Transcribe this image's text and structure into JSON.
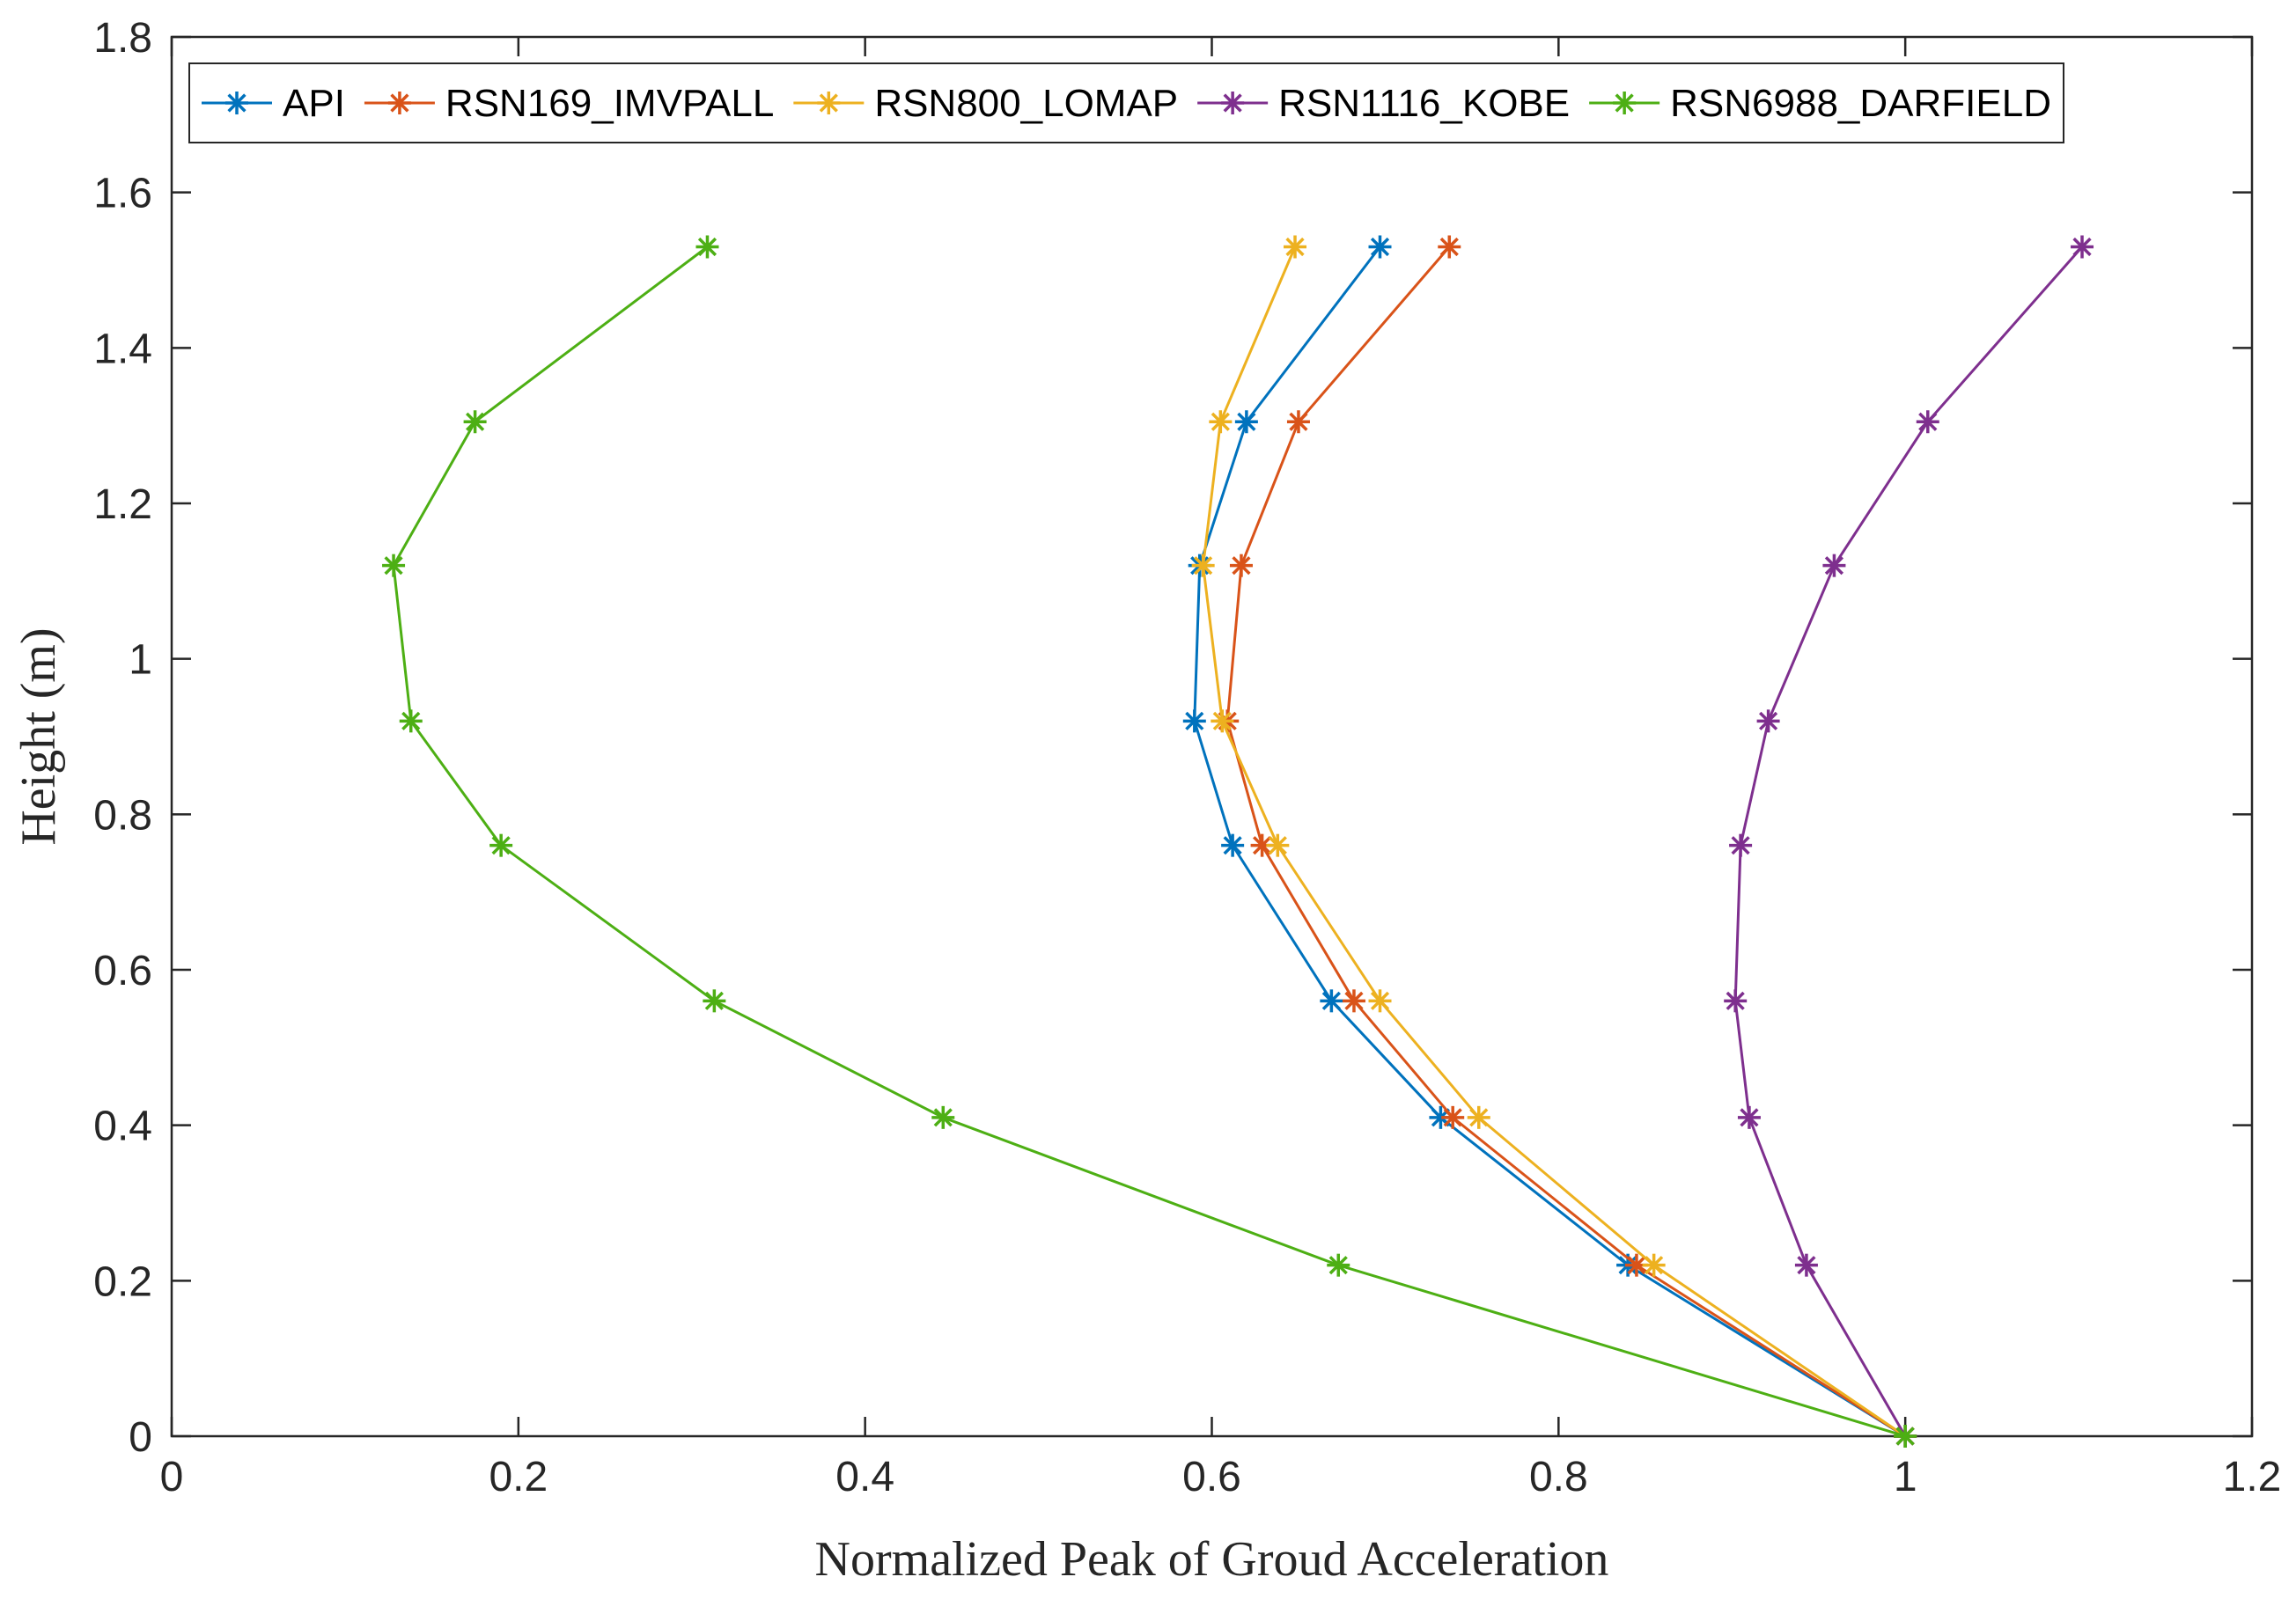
{
  "chart_data": {
    "type": "line",
    "title": "",
    "xlabel": "Normalized Peak of Groud Acceleration",
    "ylabel": "Height (m)",
    "xlim": [
      0,
      1.2
    ],
    "ylim": [
      0,
      1.8
    ],
    "xticks": [
      0,
      0.2,
      0.4,
      0.6,
      0.8,
      1,
      1.2
    ],
    "yticks": [
      0,
      0.2,
      0.4,
      0.6,
      0.8,
      1,
      1.2,
      1.4,
      1.6,
      1.8
    ],
    "xtick_labels": [
      "0",
      "0.2",
      "0.4",
      "0.6",
      "0.8",
      "1",
      "1.2"
    ],
    "ytick_labels": [
      "0",
      "0.2",
      "0.4",
      "0.6",
      "0.8",
      "1",
      "1.2",
      "1.4",
      "1.6",
      "1.8"
    ],
    "grid": false,
    "legend_position": "top",
    "marker": "asterisk",
    "y": [
      0,
      0.22,
      0.41,
      0.56,
      0.76,
      0.92,
      1.12,
      1.305,
      1.53
    ],
    "series": [
      {
        "name": "API",
        "color": "#0072BD",
        "x": [
          1.0,
          0.84,
          0.732,
          0.669,
          0.612,
          0.59,
          0.593,
          0.62,
          0.697
        ]
      },
      {
        "name": "RSN169_IMVPALL",
        "color": "#D95319",
        "x": [
          1.0,
          0.845,
          0.739,
          0.682,
          0.629,
          0.609,
          0.617,
          0.65,
          0.737
        ]
      },
      {
        "name": "RSN800_LOMAP",
        "color": "#EDB120",
        "x": [
          1.0,
          0.855,
          0.754,
          0.697,
          0.638,
          0.606,
          0.595,
          0.605,
          0.648
        ]
      },
      {
        "name": "RSN1116_KOBE",
        "color": "#7E2F8E",
        "x": [
          1.0,
          0.943,
          0.91,
          0.902,
          0.905,
          0.921,
          0.959,
          1.013,
          1.102
        ]
      },
      {
        "name": "RSN6988_DARFIELD",
        "color": "#4DAF14",
        "x": [
          1.0,
          0.673,
          0.445,
          0.313,
          0.19,
          0.138,
          0.128,
          0.175,
          0.309
        ]
      }
    ]
  }
}
